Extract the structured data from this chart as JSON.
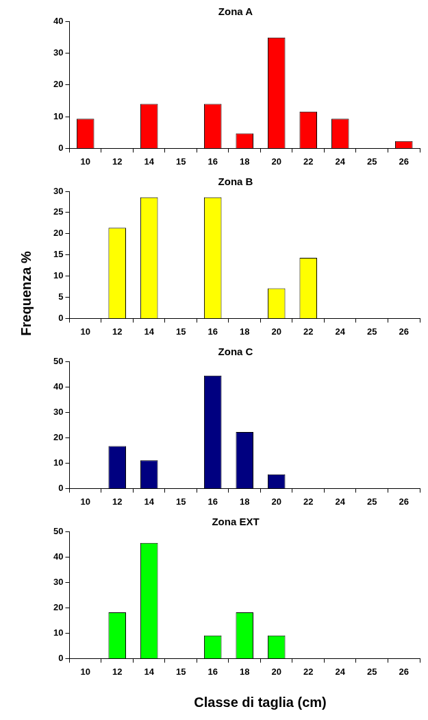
{
  "chart_data": [
    {
      "type": "bar",
      "title": "Zona A",
      "categories": [
        "10",
        "12",
        "14",
        "15",
        "16",
        "18",
        "20",
        "22",
        "24",
        "25",
        "26"
      ],
      "values": [
        9.3,
        0,
        14,
        0,
        14,
        4.7,
        34.9,
        11.6,
        9.3,
        0,
        2.3
      ],
      "color": "#ff0000",
      "ylim": [
        0,
        40
      ],
      "yticks": [
        0,
        10,
        20,
        30,
        40
      ]
    },
    {
      "type": "bar",
      "title": "Zona B",
      "ylabel": "Frequenza %",
      "categories": [
        "10",
        "12",
        "14",
        "15",
        "16",
        "18",
        "20",
        "22",
        "24",
        "25",
        "26"
      ],
      "values": [
        0,
        21.4,
        28.6,
        0,
        28.6,
        0,
        7.1,
        14.3,
        0,
        0,
        0
      ],
      "color": "#ffff00",
      "ylim": [
        0,
        30
      ],
      "yticks": [
        0,
        5,
        10,
        15,
        20,
        25,
        30
      ]
    },
    {
      "type": "bar",
      "title": "Zona C",
      "categories": [
        "10",
        "12",
        "14",
        "15",
        "16",
        "18",
        "20",
        "22",
        "24",
        "25",
        "26"
      ],
      "values": [
        0,
        16.7,
        11.1,
        0,
        44.4,
        22.2,
        5.6,
        0,
        0,
        0,
        0
      ],
      "color": "#000080",
      "ylim": [
        0,
        50
      ],
      "yticks": [
        0,
        10,
        20,
        30,
        40,
        50
      ]
    },
    {
      "type": "bar",
      "title": "Zona EXT",
      "xlabel": "Classe di taglia (cm)",
      "categories": [
        "10",
        "12",
        "14",
        "15",
        "16",
        "18",
        "20",
        "22",
        "24",
        "25",
        "26"
      ],
      "values": [
        0,
        18.2,
        45.5,
        0,
        9.1,
        18.2,
        9.1,
        0,
        0,
        0,
        0
      ],
      "color": "#00ff00",
      "ylim": [
        0,
        50
      ],
      "yticks": [
        0,
        10,
        20,
        30,
        40,
        50
      ]
    }
  ]
}
